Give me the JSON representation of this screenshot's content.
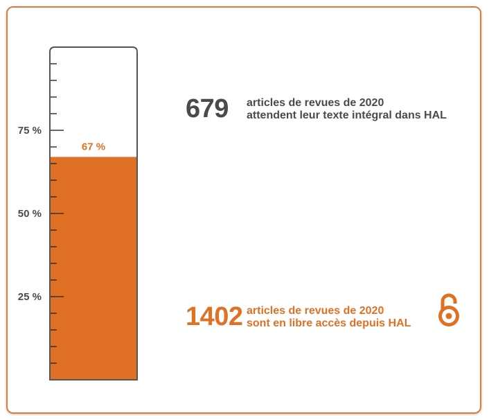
{
  "chart_data": {
    "type": "gauge",
    "value": 67,
    "value_label": "67 %",
    "ylim": [
      0,
      100
    ],
    "major_ticks": [
      {
        "value": 25,
        "label": "25 %"
      },
      {
        "value": 50,
        "label": "50 %"
      },
      {
        "value": 75,
        "label": "75 %"
      }
    ],
    "minor_tick_step": 5,
    "fill_color": "#e07024"
  },
  "stats": {
    "pending": {
      "number": "679",
      "line1": "articles de revues de 2020",
      "line2": "attendent leur texte intégral dans HAL"
    },
    "open_access": {
      "number": "1402",
      "line1": "articles de revues de 2020",
      "line2": "sont en libre accès depuis HAL"
    }
  },
  "colors": {
    "accent": "#e07024",
    "border": "#e07a3a",
    "text_dark": "#4a4a4a"
  },
  "icons": {
    "open_access": "open-access-lock-icon"
  }
}
